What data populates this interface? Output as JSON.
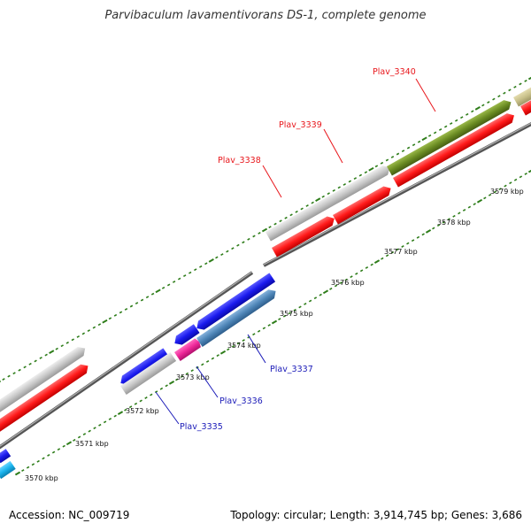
{
  "title": "Parvibaculum lavamentivorans DS-1, complete genome",
  "footer": {
    "accession": "Accession: NC_009719",
    "summary": "Topology: circular; Length: 3,914,745 bp; Genes: 3,686"
  },
  "kbp_labels": [
    "3570 kbp",
    "3571 kbp",
    "3572 kbp",
    "3573 kbp",
    "3574 kbp",
    "3575 kbp",
    "3576 kbp",
    "3577 kbp",
    "3578 kbp",
    "3579 kbp"
  ],
  "gene_labels": [
    {
      "text": "Plav_3340",
      "color": "#e8161b"
    },
    {
      "text": "Plav_3339",
      "color": "#e8161b"
    },
    {
      "text": "Plav_3338",
      "color": "#e8161b"
    },
    {
      "text": "Plav_3337",
      "color": "#1a1ab8"
    },
    {
      "text": "Plav_3336",
      "color": "#1a1ab8"
    },
    {
      "text": "Plav_3335",
      "color": "#1a1ab8"
    }
  ],
  "colors": {
    "backbone": "#8a8a8a",
    "tick_green": "#2e7d1a",
    "cds_red": "#ff1a1a",
    "cds_blue": "#1a1aee",
    "cds_gray": "#c8c8c8",
    "cds_olive": "#6b8c23",
    "cds_tan": "#c8c08a",
    "cds_steel": "#4f86b8",
    "cds_pink": "#ee2899",
    "cds_cyan": "#1ab4ee"
  }
}
